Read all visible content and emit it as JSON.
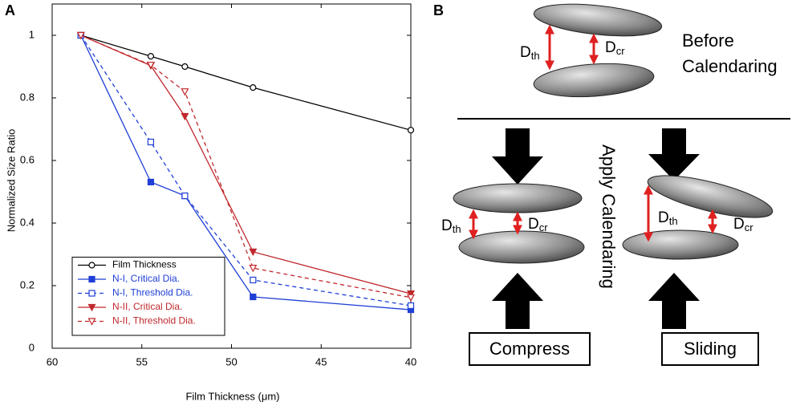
{
  "chart_data": {
    "type": "line",
    "panel_label": "A",
    "x_label": "Film Thickness (μm)",
    "y_label": "Normalized Size Ratio",
    "x": [
      58.4,
      54.5,
      52.6,
      48.8,
      40
    ],
    "xlim": [
      60,
      40
    ],
    "xticks": [
      60,
      55,
      50,
      45,
      40
    ],
    "ylim": [
      0,
      1.1
    ],
    "yticks": [
      0,
      0.2,
      0.4,
      0.6,
      0.8,
      1
    ],
    "legend": "lower left",
    "series": [
      {
        "name": "Film Thickness",
        "color": "#000000",
        "marker": "circle",
        "filled": false,
        "dashed": false,
        "values": [
          1,
          0.933,
          0.9,
          0.833,
          0.697
        ]
      },
      {
        "name": "N-I, Critical Dia.",
        "color": "#1f3fd6",
        "marker": "square",
        "filled": true,
        "dashed": false,
        "values": [
          1,
          0.531,
          0.487,
          0.164,
          0.123
        ]
      },
      {
        "name": "N-I, Threshold Dia.",
        "color": "#1f3fd6",
        "marker": "square",
        "filled": false,
        "dashed": true,
        "values": [
          1,
          0.659,
          0.487,
          0.218,
          0.136
        ]
      },
      {
        "name": "N-II, Critical Dia.",
        "color": "#c0282d",
        "marker": "triangle-down",
        "filled": true,
        "dashed": false,
        "values": [
          1,
          0.903,
          0.741,
          0.308,
          0.174
        ]
      },
      {
        "name": "N-II, Threshold Dia.",
        "color": "#c0282d",
        "marker": "triangle-down",
        "filled": false,
        "dashed": true,
        "values": [
          1,
          0.905,
          0.82,
          0.256,
          0.162
        ]
      }
    ]
  },
  "diagram": {
    "panel_label": "B",
    "before_label": [
      "Before",
      "Calendaring"
    ],
    "apply_label": "Apply Calendaring",
    "compress_label": "Compress",
    "sliding_label": "Sliding",
    "threshold": {
      "symbol": "D",
      "subscript": "th"
    },
    "critical": {
      "symbol": "D",
      "subscript": "cr"
    }
  }
}
